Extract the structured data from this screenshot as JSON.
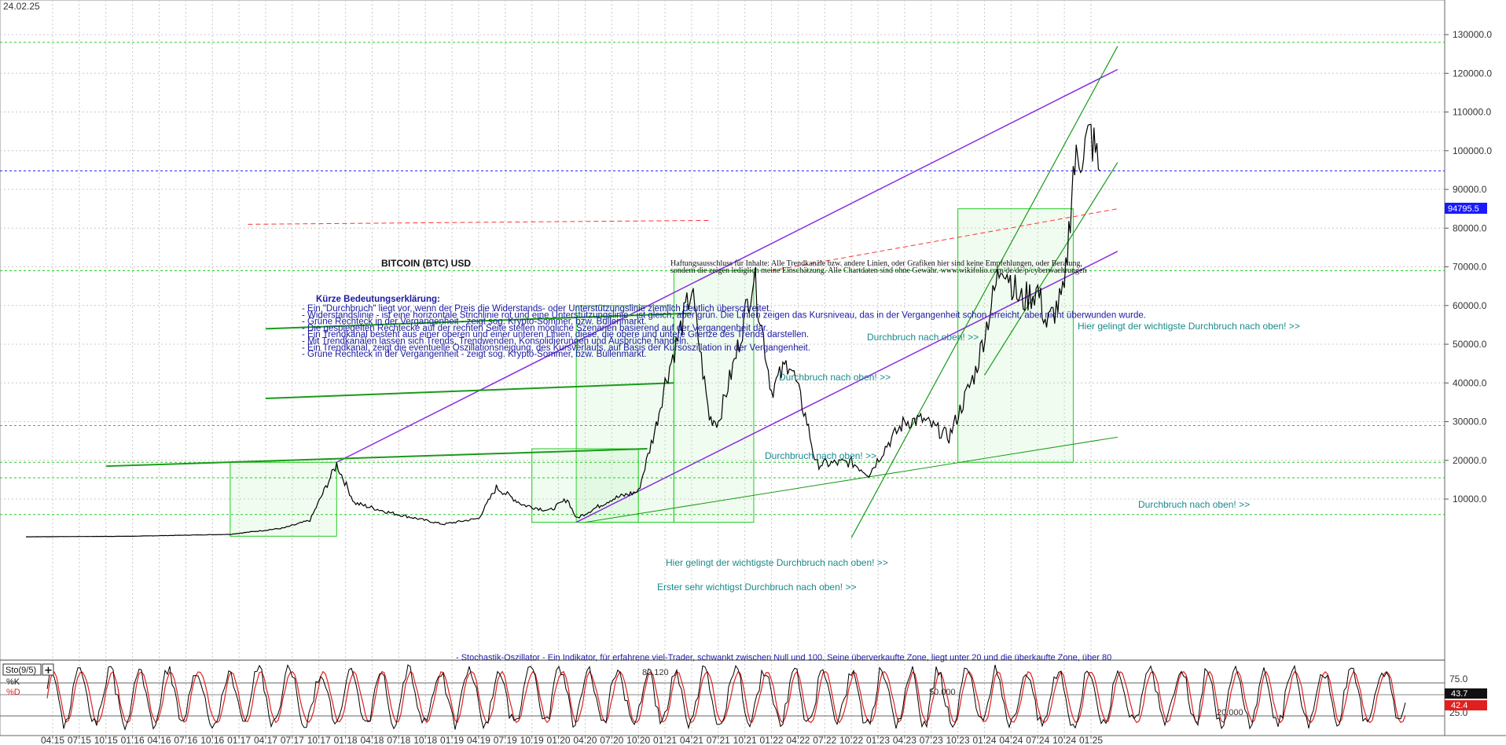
{
  "date_label": "24.02.25",
  "title": "BITCOIN (BTC) USD",
  "current_price_label": "94795.5",
  "disclaimer": [
    "Haftungsausschluss für Inhalte: Alle Trendkanäle bzw. andere Linien, oder Grafiken hier sind keine Empfehlungen, oder Beratung,",
    "sondern die zeigen lediglich meine  Einschätzung. Alle Chartdaten sind ohne Gewähr.  www.wikifolio.com/de/de/p/cyberwaehrungen"
  ],
  "legend": {
    "heading": "Kürze Bedeutungserklärung:",
    "lines": [
      "- Ein \"Durchbruch\" liegt vor, wenn der Preis die Widerstands- oder Unterstützungslinie ziemlich deutlich überschreitet.",
      "- Widerstandslinie - ist eine horizontale Strichlinie rot und eine Unterstützungslinie - ist gleich, aber grün. Die Linien zeigen das Kursniveau, das in der Vergangenheit schon erreicht, aber nicht überwunden wurde.",
      "- Grüne Rechteck in der Vergangenheit - zeigt sog. Krypto-Sommer, bzw. Bullenmarkt.",
      "- Die gespiegelten Rechtecke auf der rechten Seite stellen mögliche Szenarien basierend auf der Vergangenheit dar.",
      "- Ein Trendkanal besteht aus einer oberen und einer unteren Linien, diese, die obere und untere Grenze des Trends darstellen.",
      "- Mit Trendkanälen lassen sich Trends, Trendwenden, Konsolidierungen und Ausbrüche handeln.",
      "- Ein Trendkanal, zeigt die eventuelle Oszillationsneigung, des Kursverlaufs, auf Basis der Kursoszillation in der Vergangenheit.",
      "- Grüne Rechteck in der Vergangenheit - zeigt sog. Krypto-Sommer, bzw. Bullenmarkt."
    ]
  },
  "annotations": [
    {
      "text": "Durchbruch nach oben! >>",
      "x": "2021-04",
      "y": 69000
    },
    {
      "text": "Durchbruch nach oben! >>",
      "x": "2020-09",
      "y": 59000
    },
    {
      "text": "Durchbruch nach oben! >>",
      "x": "2020-08",
      "y": 42000
    },
    {
      "text": "Hier gelingt der wichtigste Durchbruch nach oben! >>",
      "x": "2023-04",
      "y": 70000
    },
    {
      "text": "Durchbruch nach oben! >>",
      "x": "2023-02",
      "y": 32000
    },
    {
      "text": "Hier gelingt der wichtigste Durchbruch nach oben! >>",
      "x": "2019-10",
      "y": 20000
    },
    {
      "text": "Erster sehr wichtigst Durchbruch nach oben! >>",
      "x": "2019-08",
      "y": 15000
    }
  ],
  "stochastic_note": "- Stochastik-Oszillator - Ein Indikator, für erfahrene viel-Trader, schwankt zwischen Null und 100. Seine überverkaufte Zone, liegt unter 20 und die überkaufte Zone, über 80",
  "osc": {
    "indicator": "Sto(9/5)",
    "k_label": "%K",
    "d_label": "%D",
    "level_80": "80.120",
    "level_50": "50.000",
    "level_20": "20.000",
    "tick_75": "75.0",
    "tick_25": "25.0",
    "k_value": "43.7",
    "d_value": "42.4"
  },
  "colors": {
    "price": "#000000",
    "support": "#22cc22",
    "resistance": "#ff3333",
    "channel_purple": "#8a2be2",
    "channel_green": "#1a9a1a",
    "current_price": "#1a1aff",
    "osc_k": "#000000",
    "osc_d": "#e02020"
  },
  "chart_data": {
    "type": "line",
    "ylim": [
      0,
      135000
    ],
    "yticks": [
      "10000.0",
      "20000.0",
      "30000.0",
      "40000.0",
      "50000.0",
      "60000.0",
      "70000.0",
      "80000.0",
      "90000.0",
      "100000.0",
      "110000.0",
      "120000.0",
      "130000.0"
    ],
    "xticks": [
      "04.15",
      "07.15",
      "10.15",
      "01.16",
      "04.16",
      "07.16",
      "10.16",
      "01.17",
      "04.17",
      "07.17",
      "10.17",
      "01.18",
      "04.18",
      "07.18",
      "10.18",
      "01.19",
      "04.19",
      "07.19",
      "10.19",
      "01.20",
      "04.20",
      "07.20",
      "10.20",
      "01.21",
      "04.21",
      "07.21",
      "10.21",
      "01.22",
      "04.22",
      "07.22",
      "10.22",
      "01.23",
      "04.23",
      "07.23",
      "10.23",
      "01.24",
      "04.24",
      "07.24",
      "10.24",
      "01.25"
    ],
    "series": [
      {
        "values": [
          [
            "2015-01",
            250
          ],
          [
            "2016-01",
            400
          ],
          [
            "2016-12",
            900
          ],
          [
            "2017-06",
            2500
          ],
          [
            "2017-09",
            4500
          ],
          [
            "2017-12",
            19000
          ],
          [
            "2018-02",
            9000
          ],
          [
            "2018-06",
            6500
          ],
          [
            "2018-12",
            3500
          ],
          [
            "2019-04",
            5000
          ],
          [
            "2019-06",
            13000
          ],
          [
            "2019-09",
            8500
          ],
          [
            "2019-12",
            7000
          ],
          [
            "2020-02",
            10000
          ],
          [
            "2020-03",
            5000
          ],
          [
            "2020-07",
            10000
          ],
          [
            "2020-10",
            12000
          ],
          [
            "2020-12",
            29000
          ],
          [
            "2021-01",
            40000
          ],
          [
            "2021-04",
            64000
          ],
          [
            "2021-06",
            31000
          ],
          [
            "2021-07",
            30000
          ],
          [
            "2021-09",
            47000
          ],
          [
            "2021-11",
            68000
          ],
          [
            "2022-01",
            38000
          ],
          [
            "2022-03",
            46000
          ],
          [
            "2022-05",
            30000
          ],
          [
            "2022-06",
            19000
          ],
          [
            "2022-10",
            19500
          ],
          [
            "2022-12",
            16500
          ],
          [
            "2023-02",
            24000
          ],
          [
            "2023-04",
            30000
          ],
          [
            "2023-06",
            30500
          ],
          [
            "2023-09",
            26000
          ],
          [
            "2023-12",
            43000
          ],
          [
            "2024-03",
            72000
          ],
          [
            "2024-05",
            61000
          ],
          [
            "2024-07",
            64000
          ],
          [
            "2024-08",
            55000
          ],
          [
            "2024-10",
            63000
          ],
          [
            "2024-11",
            95000
          ],
          [
            "2024-12",
            100000
          ],
          [
            "2025-01",
            104000
          ],
          [
            "2025-02",
            94795
          ]
        ]
      }
    ],
    "horizontal_levels": [
      128000,
      94795.5,
      69000,
      29000,
      19500,
      15500,
      6000
    ],
    "grid": true
  }
}
